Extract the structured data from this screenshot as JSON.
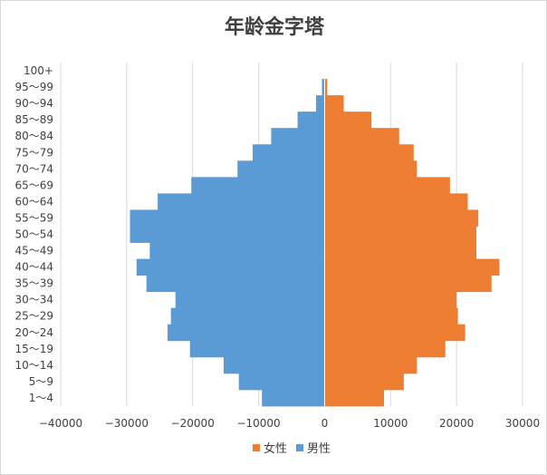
{
  "chart_data": {
    "type": "bar",
    "orientation": "horizontal",
    "layout": "population-pyramid",
    "title": "年龄金字塔",
    "categories": [
      "1～4",
      "5～9",
      "10～14",
      "15～19",
      "20～24",
      "25～29",
      "30～34",
      "35～39",
      "40～44",
      "45～49",
      "50～54",
      "55～59",
      "60～64",
      "65～69",
      "70～74",
      "75～79",
      "80～84",
      "85～89",
      "90～94",
      "95～99",
      "100+"
    ],
    "series": [
      {
        "name": "女性",
        "color": "#ED7D31",
        "values": [
          9000,
          12000,
          14000,
          18300,
          21300,
          20200,
          20000,
          25300,
          26500,
          23000,
          23000,
          23300,
          21700,
          19000,
          14000,
          13500,
          11300,
          7100,
          2900,
          400,
          0
        ]
      },
      {
        "name": "男性",
        "color": "#5B9BD5",
        "values": [
          -9500,
          -13000,
          -15300,
          -20400,
          -23800,
          -23300,
          -22600,
          -27000,
          -28500,
          -26500,
          -29500,
          -29500,
          -25300,
          -20200,
          -13200,
          -10900,
          -8100,
          -4100,
          -1300,
          -400,
          0
        ]
      }
    ],
    "xlim": [
      -40000,
      30000
    ],
    "xticks": [
      -40000,
      -30000,
      -20000,
      -10000,
      0,
      10000,
      20000,
      30000
    ],
    "xtick_labels": [
      "−40000",
      "−30000",
      "−20000",
      "−10000",
      "0",
      "10000",
      "20000",
      "30000"
    ],
    "grid": "vertical",
    "legend_position": "bottom"
  }
}
